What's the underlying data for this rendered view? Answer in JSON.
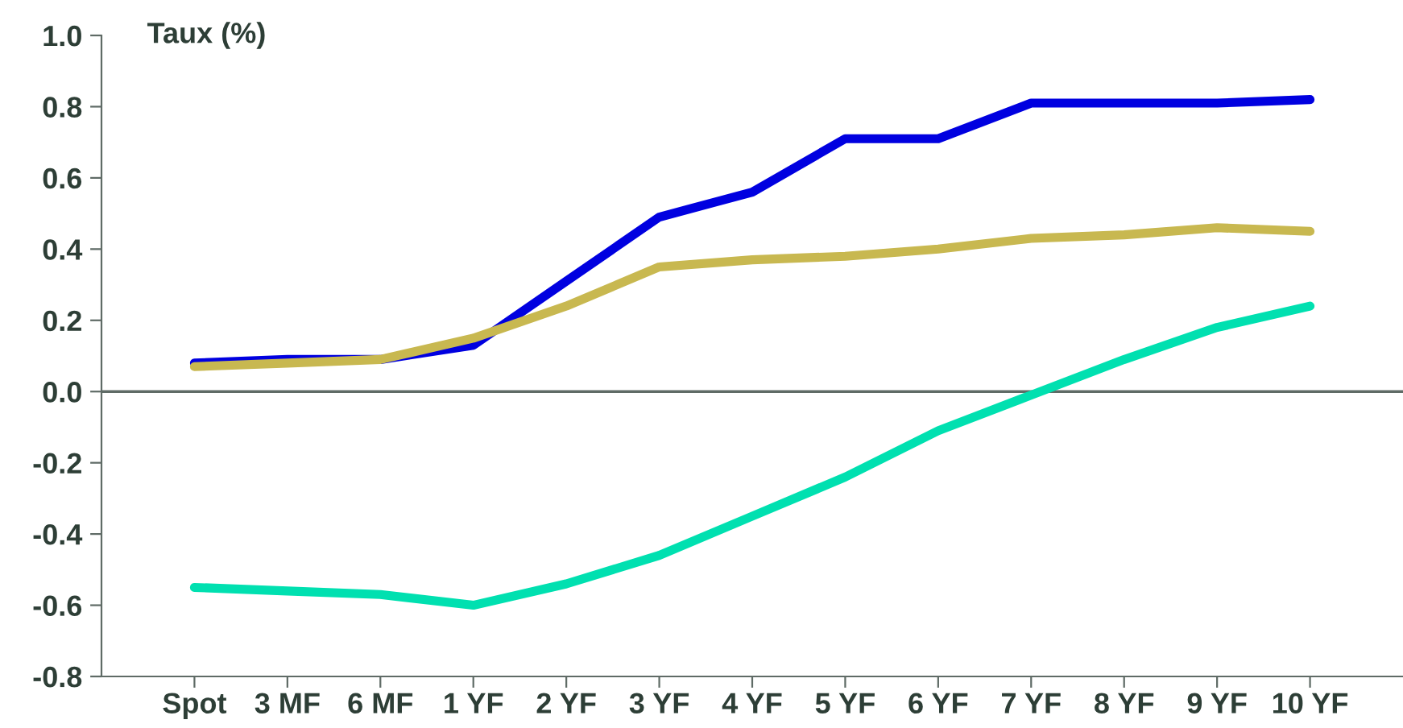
{
  "chart_data": {
    "type": "line",
    "ylabel": "Taux (%)",
    "categories": [
      "Spot",
      "3 MF",
      "6 MF",
      "1 YF",
      "2 YF",
      "3 YF",
      "4 YF",
      "5 YF",
      "6 YF",
      "7 YF",
      "8 YF",
      "9 YF",
      "10 YF"
    ],
    "series": [
      {
        "color": "#0000e0",
        "values": [
          0.08,
          0.09,
          0.09,
          0.13,
          0.31,
          0.49,
          0.56,
          0.71,
          0.71,
          0.81,
          0.81,
          0.81,
          0.82
        ]
      },
      {
        "color": "#c8b850",
        "values": [
          0.07,
          0.08,
          0.09,
          0.15,
          0.24,
          0.35,
          0.37,
          0.38,
          0.4,
          0.43,
          0.44,
          0.46,
          0.45
        ]
      },
      {
        "color": "#00e0b0",
        "values": [
          -0.55,
          -0.56,
          -0.57,
          -0.6,
          -0.54,
          -0.46,
          -0.35,
          -0.24,
          -0.11,
          -0.01,
          0.09,
          0.18,
          0.24
        ]
      }
    ],
    "ylim": [
      -0.8,
      1.0
    ],
    "yticks": [
      {
        "value": -0.8,
        "label": "-0.8"
      },
      {
        "value": -0.6,
        "label": "-0.6"
      },
      {
        "value": -0.4,
        "label": "-0.4"
      },
      {
        "value": -0.2,
        "label": "-0.2"
      },
      {
        "value": 0.0,
        "label": "0.0"
      },
      {
        "value": 0.2,
        "label": "0.2"
      },
      {
        "value": 0.4,
        "label": "0.4"
      },
      {
        "value": 0.6,
        "label": "0.6"
      },
      {
        "value": 0.8,
        "label": "0.8"
      },
      {
        "value": 1.0,
        "label": "1.0"
      }
    ],
    "ref_lines": [
      {
        "axis": "y",
        "value": 0,
        "color": "#5f6b66"
      }
    ],
    "grid": false,
    "marker": "none",
    "line_style": "solid"
  }
}
